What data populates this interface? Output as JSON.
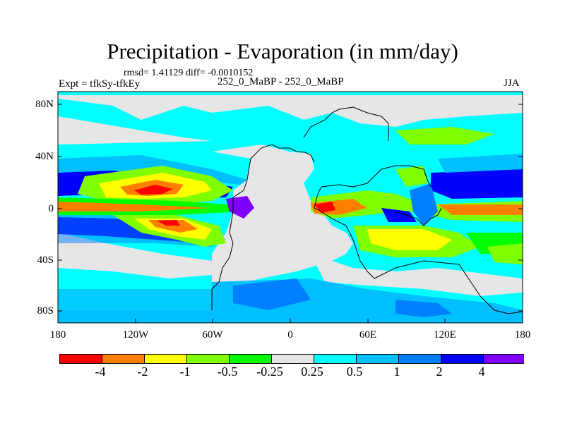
{
  "title": "Precipitation - Evaporation (in mm/day)",
  "stats": "rmsd= 1.41129 diff= -0.0010152",
  "left_label": "Expt = tfkSy-tfkEy",
  "center_label": "252_0_MaBP - 252_0_MaBP",
  "right_label": "JJA",
  "lat_labels": [
    "80N",
    "40N",
    "0",
    "40S",
    "80S"
  ],
  "lon_labels": [
    "180",
    "120W",
    "60W",
    "0",
    "60E",
    "120E",
    "180"
  ],
  "colorbar": {
    "colors": [
      "#ff0000",
      "#ff7f00",
      "#ffff00",
      "#7fff00",
      "#00ff00",
      "#e6e6e6",
      "#00ffff",
      "#00bfff",
      "#007fff",
      "#0000ff",
      "#7f00ff"
    ],
    "tick_labels": [
      "-4",
      "-2",
      "-1",
      "-0.5",
      "-0.25",
      "0.25",
      "0.5",
      "1",
      "2",
      "4"
    ]
  }
}
